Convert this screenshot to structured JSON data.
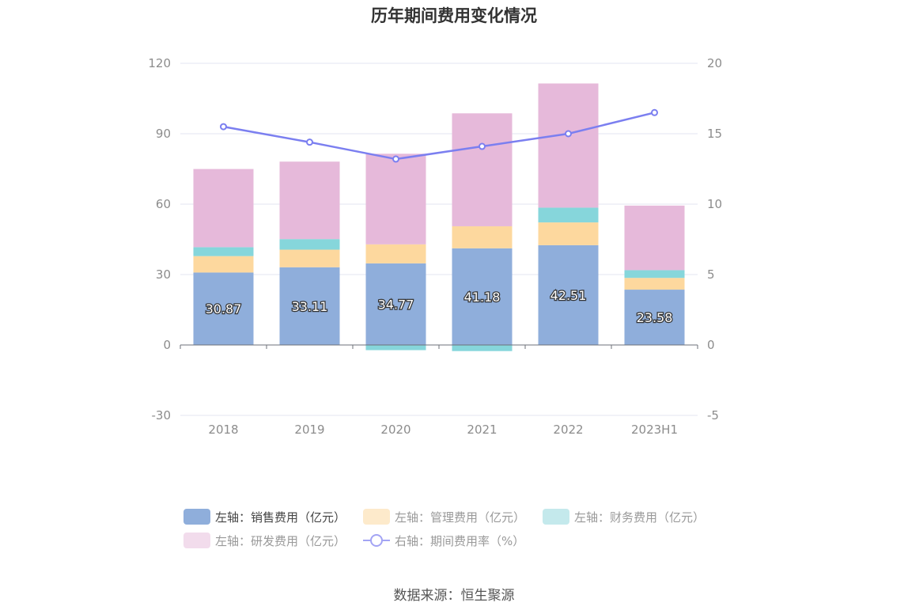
{
  "title": "历年期间费用变化情况",
  "source": "数据来源：恒生聚源",
  "chart_data": {
    "type": "bar",
    "stacked": true,
    "categories": [
      "2018",
      "2019",
      "2020",
      "2021",
      "2022",
      "2023H1"
    ],
    "left_axis": {
      "min": -30,
      "max": 120,
      "ticks": [
        "-30",
        "0",
        "30",
        "60",
        "90",
        "120"
      ]
    },
    "right_axis": {
      "min": -5,
      "max": 20,
      "ticks": [
        "-5",
        "0",
        "5",
        "10",
        "15",
        "20"
      ]
    },
    "grid": true,
    "legend_position": "bottom",
    "series": [
      {
        "name": "左轴：销售费用（亿元）",
        "axis": "left",
        "type": "bar",
        "color": "#8faedb",
        "values": [
          30.87,
          33.11,
          34.77,
          41.18,
          42.51,
          23.58
        ],
        "labels": [
          "30.87",
          "33.11",
          "34.77",
          "41.18",
          "42.51",
          "23.58"
        ]
      },
      {
        "name": "左轴：管理费用（亿元）",
        "axis": "left",
        "type": "bar",
        "color": "#fdd89e",
        "values": [
          7.0,
          7.5,
          8.1,
          9.4,
          9.7,
          5.0
        ]
      },
      {
        "name": "左轴：财务费用（亿元）",
        "axis": "left",
        "type": "bar",
        "color": "#86d6db",
        "values": [
          3.8,
          4.5,
          -2.2,
          -2.6,
          6.3,
          3.3
        ]
      },
      {
        "name": "左轴：研发费用（亿元）",
        "axis": "left",
        "type": "bar",
        "color": "#e6b9da",
        "values": [
          33.3,
          33.0,
          38.6,
          48.1,
          52.9,
          27.5
        ]
      },
      {
        "name": "右轴：期间费用率（%）",
        "axis": "right",
        "type": "line",
        "color": "#7b7ff0",
        "values": [
          15.5,
          14.4,
          13.2,
          14.1,
          15.0,
          16.5
        ]
      }
    ]
  }
}
